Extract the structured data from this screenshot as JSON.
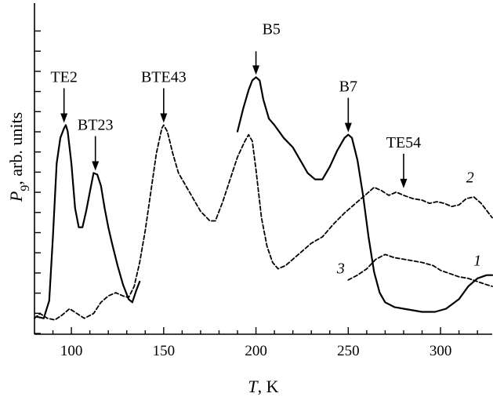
{
  "chart_data": {
    "type": "line",
    "xlabel": {
      "var": "T",
      "unit": ", K"
    },
    "ylabel": {
      "var": "P",
      "sub": "9",
      "unit": ", arb. units"
    },
    "xlim": [
      80,
      328
    ],
    "x_ticks": [
      100,
      150,
      200,
      250,
      300
    ],
    "grid": false,
    "series": [
      {
        "name": "1",
        "style": "solid",
        "segments": [
          [
            [
              81,
              0.5
            ],
            [
              85,
              0.45
            ],
            [
              88,
              1.0
            ],
            [
              90,
              3.0
            ],
            [
              92,
              5.3
            ],
            [
              94,
              6.1
            ],
            [
              96,
              6.4
            ],
            [
              97,
              6.5
            ],
            [
              98,
              6.3
            ],
            [
              100,
              5.3
            ],
            [
              102,
              3.9
            ],
            [
              104,
              3.3
            ],
            [
              106,
              3.3
            ],
            [
              108,
              3.8
            ],
            [
              110,
              4.4
            ],
            [
              112,
              5.0
            ],
            [
              114,
              4.95
            ],
            [
              116,
              4.6
            ],
            [
              118,
              3.9
            ],
            [
              120,
              3.3
            ],
            [
              122,
              2.8
            ],
            [
              125,
              2.1
            ],
            [
              128,
              1.5
            ],
            [
              131,
              1.05
            ],
            [
              133,
              0.95
            ],
            [
              135,
              1.3
            ],
            [
              137,
              1.6
            ]
          ],
          [
            [
              190,
              6.3
            ],
            [
              193,
              7.0
            ],
            [
              196,
              7.6
            ],
            [
              198,
              7.9
            ],
            [
              200,
              8.0
            ],
            [
              202,
              7.9
            ],
            [
              204,
              7.3
            ],
            [
              207,
              6.7
            ],
            [
              210,
              6.5
            ],
            [
              215,
              6.1
            ],
            [
              220,
              5.8
            ],
            [
              225,
              5.3
            ],
            [
              228,
              5.0
            ],
            [
              232,
              4.8
            ],
            [
              236,
              4.8
            ],
            [
              240,
              5.2
            ],
            [
              244,
              5.7
            ],
            [
              248,
              6.1
            ],
            [
              250,
              6.2
            ],
            [
              252,
              6.1
            ],
            [
              255,
              5.4
            ],
            [
              258,
              4.3
            ],
            [
              261,
              3.0
            ],
            [
              264,
              1.9
            ],
            [
              267,
              1.25
            ],
            [
              270,
              0.95
            ],
            [
              275,
              0.8
            ],
            [
              280,
              0.75
            ],
            [
              290,
              0.65
            ],
            [
              297,
              0.65
            ],
            [
              303,
              0.75
            ],
            [
              310,
              1.05
            ],
            [
              315,
              1.45
            ],
            [
              320,
              1.7
            ],
            [
              325,
              1.8
            ],
            [
              328,
              1.8
            ]
          ]
        ]
      },
      {
        "name": "2",
        "style": "dashed",
        "segments": [
          [
            [
              80,
              0.45
            ],
            [
              83,
              0.6
            ],
            [
              87,
              0.45
            ],
            [
              91,
              0.4
            ],
            [
              95,
              0.55
            ],
            [
              99,
              0.75
            ],
            [
              103,
              0.6
            ],
            [
              107,
              0.45
            ],
            [
              112,
              0.6
            ],
            [
              116,
              0.95
            ],
            [
              120,
              1.15
            ],
            [
              124,
              1.25
            ],
            [
              128,
              1.15
            ],
            [
              131,
              1.1
            ],
            [
              134,
              1.45
            ],
            [
              137,
              2.2
            ],
            [
              140,
              3.2
            ],
            [
              143,
              4.4
            ],
            [
              146,
              5.6
            ],
            [
              149,
              6.4
            ],
            [
              150,
              6.5
            ],
            [
              152,
              6.3
            ],
            [
              155,
              5.6
            ],
            [
              158,
              5.0
            ],
            [
              162,
              4.6
            ],
            [
              166,
              4.2
            ],
            [
              170,
              3.8
            ],
            [
              175,
              3.5
            ],
            [
              178,
              3.5
            ],
            [
              182,
              4.1
            ],
            [
              186,
              4.8
            ],
            [
              190,
              5.5
            ],
            [
              194,
              6.0
            ],
            [
              196,
              6.2
            ],
            [
              198,
              6.0
            ],
            [
              200,
              5.1
            ],
            [
              203,
              3.6
            ],
            [
              206,
              2.7
            ],
            [
              209,
              2.2
            ],
            [
              212,
              2.0
            ],
            [
              216,
              2.1
            ],
            [
              220,
              2.3
            ],
            [
              225,
              2.55
            ],
            [
              230,
              2.8
            ],
            [
              236,
              3.0
            ],
            [
              242,
              3.4
            ],
            [
              248,
              3.75
            ],
            [
              254,
              4.05
            ],
            [
              260,
              4.35
            ],
            [
              264,
              4.55
            ],
            [
              268,
              4.45
            ],
            [
              272,
              4.3
            ],
            [
              276,
              4.4
            ],
            [
              280,
              4.3
            ],
            [
              285,
              4.2
            ],
            [
              290,
              4.15
            ],
            [
              294,
              4.05
            ],
            [
              298,
              4.1
            ],
            [
              302,
              4.05
            ],
            [
              306,
              3.95
            ],
            [
              310,
              4.0
            ],
            [
              314,
              4.2
            ],
            [
              318,
              4.25
            ],
            [
              322,
              4.05
            ],
            [
              326,
              3.75
            ],
            [
              328,
              3.6
            ]
          ]
        ]
      },
      {
        "name": "3",
        "style": "dashed",
        "segments": [
          [
            [
              250,
              1.65
            ],
            [
              255,
              1.8
            ],
            [
              260,
              2.0
            ],
            [
              265,
              2.3
            ],
            [
              270,
              2.45
            ],
            [
              275,
              2.35
            ],
            [
              280,
              2.3
            ],
            [
              285,
              2.25
            ],
            [
              290,
              2.2
            ],
            [
              296,
              2.1
            ],
            [
              300,
              1.95
            ],
            [
              305,
              1.85
            ],
            [
              310,
              1.75
            ],
            [
              315,
              1.7
            ],
            [
              320,
              1.6
            ],
            [
              325,
              1.5
            ],
            [
              328,
              1.45
            ]
          ]
        ]
      }
    ],
    "annotations": [
      {
        "label": "TE2",
        "x": 96,
        "tip": 6.5
      },
      {
        "label": "BT23",
        "x": 113,
        "tip": 5.0
      },
      {
        "label": "BTE43",
        "x": 150,
        "tip": 6.5
      },
      {
        "label": "B5",
        "x": 200,
        "tip": 8.0
      },
      {
        "label": "B7",
        "x": 250,
        "tip": 6.2
      },
      {
        "label": "TE54",
        "x": 280,
        "tip": 4.45
      }
    ],
    "curve_labels": [
      {
        "label": "1",
        "x": 320,
        "y": 2.1
      },
      {
        "label": "2",
        "x": 316,
        "y": 4.7
      },
      {
        "label": "3",
        "x": 246,
        "y": 1.85
      }
    ]
  }
}
